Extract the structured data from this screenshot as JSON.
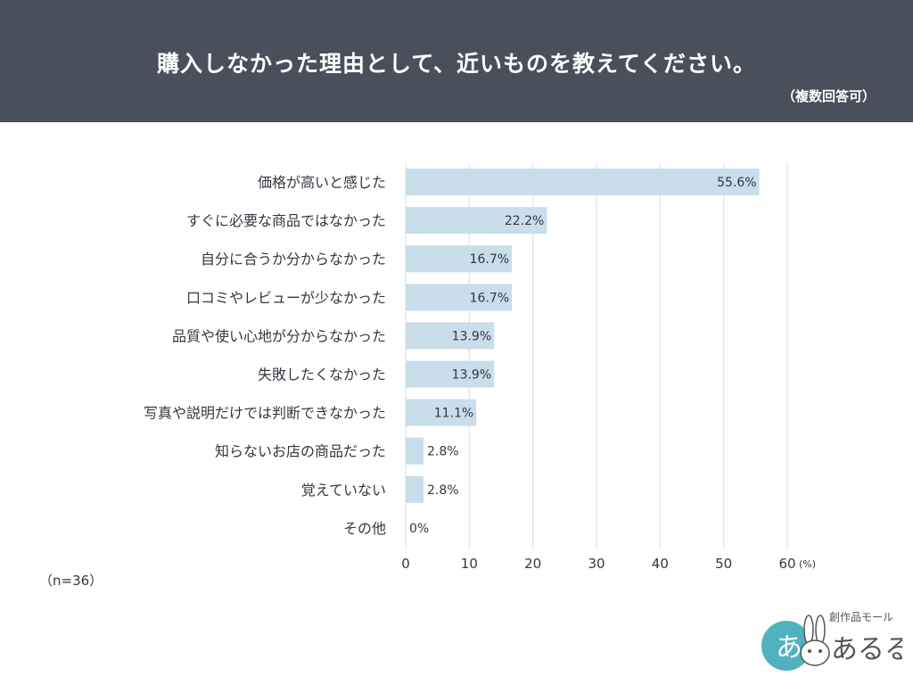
{
  "header": {
    "title": "購入しなかった理由として、近いものを教えてください。",
    "subtitle": "（複数回答可）"
  },
  "sample_size": "（n=36）",
  "colors": {
    "header_bg": "#4a4f5c",
    "bar": "#c9ddeb",
    "grid": "#dfe3e8",
    "text": "#333840"
  },
  "logo": {
    "text": "あるる",
    "tagline": "創作品モール",
    "icon": "rabbit-logo-icon"
  },
  "chart_data": {
    "type": "bar",
    "orientation": "horizontal",
    "title": "購入しなかった理由として、近いものを教えてください。",
    "categories": [
      "価格が高いと感じた",
      "すぐに必要な商品ではなかった",
      "自分に合うか分からなかった",
      "口コミやレビューが少なかった",
      "品質や使い心地が分からなかった",
      "失敗したくなかった",
      "写真や説明だけでは判断できなかった",
      "知らないお店の商品だった",
      "覚えていない",
      "その他"
    ],
    "values": [
      55.6,
      22.2,
      16.7,
      16.7,
      13.9,
      13.9,
      11.1,
      2.8,
      2.8,
      0
    ],
    "value_labels": [
      "55.6%",
      "22.2%",
      "16.7%",
      "16.7%",
      "13.9%",
      "13.9%",
      "11.1%",
      "2.8%",
      "2.8%",
      "0%"
    ],
    "xlim": [
      0,
      60
    ],
    "x_ticks": [
      "0",
      "10",
      "20",
      "30",
      "40",
      "50",
      "60"
    ],
    "x_unit": "(%)",
    "grid": true,
    "legend": "none"
  }
}
